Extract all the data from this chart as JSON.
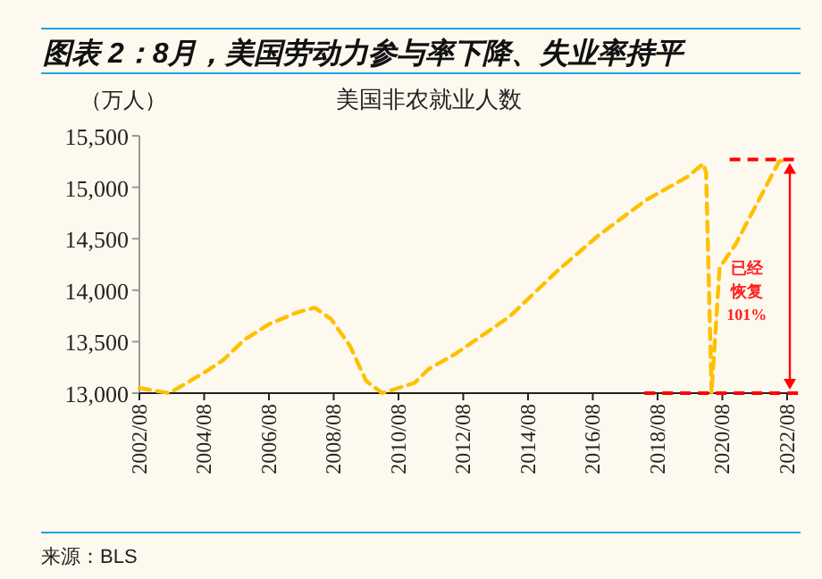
{
  "chart_data": {
    "type": "line",
    "title": "图表 2：8月，美国劳动力参与率下降、失业率持平",
    "subtitle": "美国非农就业人数",
    "ylabel": "（万人）",
    "annotations": [
      "已经恢复101%",
      "来源：BLS"
    ],
    "line_style": "dashed",
    "marker": "none",
    "grid": false,
    "xlim": [
      "2002-08",
      "2022-11"
    ],
    "xticks": [
      {
        "value": "2002-08",
        "label": "2002/08"
      },
      {
        "value": "2004-08",
        "label": "2004/08"
      },
      {
        "value": "2006-08",
        "label": "2006/08"
      },
      {
        "value": "2008-08",
        "label": "2008/08"
      },
      {
        "value": "2010-08",
        "label": "2010/08"
      },
      {
        "value": "2012-08",
        "label": "2012/08"
      },
      {
        "value": "2014-08",
        "label": "2014/08"
      },
      {
        "value": "2016-08",
        "label": "2016/08"
      },
      {
        "value": "2018-08",
        "label": "2018/08"
      },
      {
        "value": "2020-08",
        "label": "2020/08"
      },
      {
        "value": "2022-08",
        "label": "2022/08"
      }
    ],
    "ylim": [
      13000,
      15500
    ],
    "yticks": [
      {
        "value": 13000,
        "label": "13,000"
      },
      {
        "value": 13500,
        "label": "13,500"
      },
      {
        "value": 14000,
        "label": "14,000"
      },
      {
        "value": 14500,
        "label": "14,500"
      },
      {
        "value": 15000,
        "label": "15,000"
      },
      {
        "value": 15500,
        "label": "15,500"
      }
    ],
    "ref_lines": [
      {
        "axis": "y",
        "value": 13000,
        "color": "#ff0000",
        "line_style": "dashed"
      },
      {
        "axis": "y",
        "value": 15270,
        "color": "#ff0000",
        "line_style": "dashed"
      }
    ],
    "series": [
      {
        "color": "#ffc000",
        "x": [
          "2002-08",
          "2003-07",
          "2004-01",
          "2004-08",
          "2005-03",
          "2005-11",
          "2006-08",
          "2007-06",
          "2008-01",
          "2008-07",
          "2009-02",
          "2009-08",
          "2010-02",
          "2010-08",
          "2011-02",
          "2011-07",
          "2012-05",
          "2014-01",
          "2015-07",
          "2016-10",
          "2018-04",
          "2019-07",
          "2020-01",
          "2020-02",
          "2020-04",
          "2020-07",
          "2021-01",
          "2021-09",
          "2022-05",
          "2022-08"
        ],
        "values": [
          13050,
          13000,
          13090,
          13200,
          13320,
          13520,
          13670,
          13780,
          13830,
          13720,
          13460,
          13120,
          13000,
          13050,
          13100,
          13230,
          13380,
          13740,
          14190,
          14530,
          14880,
          15100,
          15230,
          15140,
          13000,
          14220,
          14450,
          14850,
          15250,
          15270
        ]
      }
    ]
  }
}
